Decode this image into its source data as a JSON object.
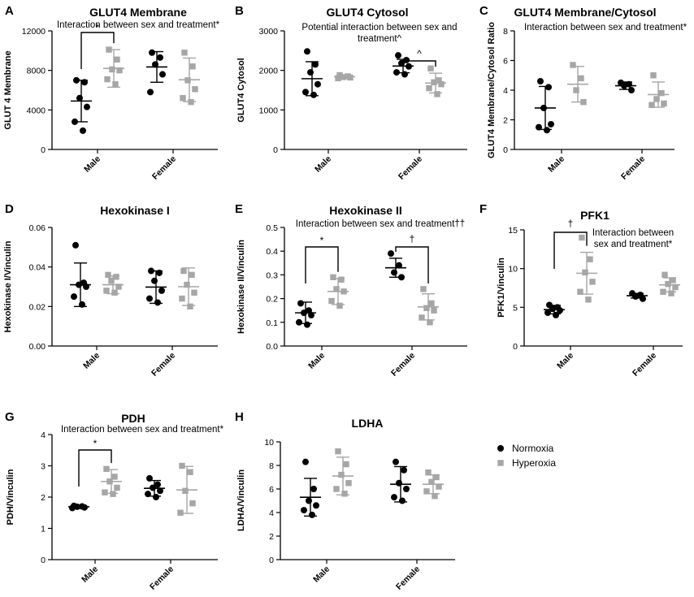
{
  "colors": {
    "normoxia": "#000000",
    "hyperoxia": "#a6a6a6",
    "axis": "#000000"
  },
  "legend": [
    {
      "name": "Normoxia",
      "color": "#000000",
      "marker": "circle"
    },
    {
      "name": "Hyperoxia",
      "color": "#a6a6a6",
      "marker": "square"
    }
  ],
  "chart_data": [
    {
      "panel": "A",
      "type": "scatter",
      "title": "GLUT4 Membrane",
      "note": "Interaction between sex and treatment*",
      "ylabel": "GLUT 4 Membrane",
      "ylim": [
        0,
        12000
      ],
      "yticks": [
        0,
        4000,
        8000,
        12000
      ],
      "categories": [
        "Male",
        "Female"
      ],
      "series": [
        {
          "group": "Male",
          "name": "Normoxia",
          "values": [
            7000,
            6800,
            5200,
            4300,
            2800,
            1900
          ],
          "mean": 4900,
          "sd": 2100
        },
        {
          "group": "Male",
          "name": "Hyperoxia",
          "values": [
            10100,
            9100,
            8100,
            8000,
            7100,
            6600
          ],
          "mean": 8200,
          "sd": 1900
        },
        {
          "group": "Female",
          "name": "Normoxia",
          "values": [
            9800,
            9300,
            8600,
            7600,
            5800
          ],
          "mean": 8350,
          "sd": 1550
        },
        {
          "group": "Female",
          "name": "Hyperoxia",
          "values": [
            9800,
            8400,
            7000,
            6100,
            5200,
            4800
          ],
          "mean": 7050,
          "sd": 2200
        }
      ],
      "significance": [
        {
          "group": "Male",
          "symbol": "*"
        }
      ]
    },
    {
      "panel": "B",
      "type": "scatter",
      "title": "GLUT4 Cytosol",
      "note": "Potential interaction between sex and",
      "note2": "treatment^",
      "ylabel": "GLUT4 Cytosol",
      "ylim": [
        0,
        3000
      ],
      "yticks": [
        0,
        1000,
        2000,
        3000
      ],
      "categories": [
        "Male",
        "Female"
      ],
      "series": [
        {
          "group": "Male",
          "name": "Normoxia",
          "values": [
            2480,
            2150,
            1950,
            1650,
            1450,
            1380
          ],
          "mean": 1790,
          "sd": 430
        },
        {
          "group": "Male",
          "name": "Hyperoxia",
          "values": [
            1880,
            1850,
            1830,
            1820,
            1800
          ],
          "mean": 1840,
          "sd": 45
        },
        {
          "group": "Female",
          "name": "Normoxia",
          "values": [
            2380,
            2260,
            2180,
            2100,
            1950,
            1900
          ],
          "mean": 2110,
          "sd": 170
        },
        {
          "group": "Female",
          "name": "Hyperoxia",
          "values": [
            2050,
            1750,
            1700,
            1650,
            1550,
            1400
          ],
          "mean": 1680,
          "sd": 250
        }
      ],
      "significance": [
        {
          "group": "Female",
          "symbol": "^"
        }
      ]
    },
    {
      "panel": "C",
      "type": "scatter",
      "title": "GLUT4 Membrane/Cytosol",
      "note": "Interaction between sex and treatment*",
      "ylabel": "GLUT4 Membrane/Cytosol Ratio",
      "ylim": [
        0,
        8
      ],
      "yticks": [
        0,
        2,
        4,
        6,
        8
      ],
      "categories": [
        "Male",
        "Female"
      ],
      "series": [
        {
          "group": "Male",
          "name": "Normoxia",
          "values": [
            4.6,
            4.2,
            2.8,
            1.7,
            1.5,
            1.3
          ],
          "mean": 2.8,
          "sd": 1.45
        },
        {
          "group": "Male",
          "name": "Hyperoxia",
          "values": [
            5.7,
            4.8,
            4.0,
            3.2
          ],
          "mean": 4.4,
          "sd": 1.2
        },
        {
          "group": "Female",
          "name": "Normoxia",
          "values": [
            4.5,
            4.4,
            4.3,
            4.0
          ],
          "mean": 4.3,
          "sd": 0.25
        },
        {
          "group": "Female",
          "name": "Hyperoxia",
          "values": [
            5.0,
            3.8,
            3.4,
            3.1,
            3.0
          ],
          "mean": 3.7,
          "sd": 0.85
        }
      ],
      "significance": []
    },
    {
      "panel": "D",
      "type": "scatter",
      "title": "Hexokinase I",
      "note": "",
      "ylabel": "Hexokinase I/Vinculin",
      "ylim": [
        0,
        0.06
      ],
      "yticks": [
        0.0,
        0.02,
        0.04,
        0.06
      ],
      "tickDecimals": 2,
      "categories": [
        "Male",
        "Female"
      ],
      "series": [
        {
          "group": "Male",
          "name": "Normoxia",
          "values": [
            0.051,
            0.032,
            0.031,
            0.03,
            0.025,
            0.021
          ],
          "mean": 0.031,
          "sd": 0.011
        },
        {
          "group": "Male",
          "name": "Hyperoxia",
          "values": [
            0.036,
            0.035,
            0.033,
            0.03,
            0.028,
            0.027
          ],
          "mean": 0.031,
          "sd": 0.0045
        },
        {
          "group": "Female",
          "name": "Normoxia",
          "values": [
            0.038,
            0.037,
            0.033,
            0.028,
            0.024,
            0.022
          ],
          "mean": 0.0298,
          "sd": 0.0082
        },
        {
          "group": "Female",
          "name": "Hyperoxia",
          "values": [
            0.038,
            0.036,
            0.031,
            0.027,
            0.024,
            0.02
          ],
          "mean": 0.03,
          "sd": 0.0095
        }
      ],
      "significance": []
    },
    {
      "panel": "E",
      "type": "scatter",
      "title": "Hexokinase II",
      "note": "Interaction between sex and treatment††",
      "ylabel": "Hexokinase II/Vinculin",
      "ylim": [
        0,
        0.5
      ],
      "yticks": [
        0.0,
        0.1,
        0.2,
        0.3,
        0.4,
        0.5
      ],
      "tickDecimals": 1,
      "categories": [
        "Male",
        "Female"
      ],
      "series": [
        {
          "group": "Male",
          "name": "Normoxia",
          "values": [
            0.18,
            0.15,
            0.14,
            0.13,
            0.1,
            0.09
          ],
          "mean": 0.14,
          "sd": 0.045
        },
        {
          "group": "Male",
          "name": "Hyperoxia",
          "values": [
            0.29,
            0.28,
            0.24,
            0.23,
            0.19,
            0.17
          ],
          "mean": 0.23,
          "sd": 0.055
        },
        {
          "group": "Female",
          "name": "Normoxia",
          "values": [
            0.39,
            0.34,
            0.31,
            0.29
          ],
          "mean": 0.33,
          "sd": 0.04
        },
        {
          "group": "Female",
          "name": "Hyperoxia",
          "values": [
            0.24,
            0.18,
            0.16,
            0.15,
            0.12,
            0.1
          ],
          "mean": 0.165,
          "sd": 0.055
        }
      ],
      "significance": [
        {
          "group": "Male",
          "symbol": "*"
        },
        {
          "group": "Female",
          "symbol": "†"
        }
      ]
    },
    {
      "panel": "F",
      "type": "scatter",
      "title": "PFK1",
      "note": "Interaction between",
      "note2": "sex and treatment*",
      "ylabel": "PFK1/Vinculin",
      "ylim": [
        0,
        15
      ],
      "yticks": [
        0,
        5,
        10,
        15
      ],
      "categories": [
        "Male",
        "Female"
      ],
      "series": [
        {
          "group": "Male",
          "name": "Normoxia",
          "values": [
            5.3,
            5.0,
            4.8,
            4.6,
            4.3,
            4.0
          ],
          "mean": 4.7,
          "sd": 0.55
        },
        {
          "group": "Male",
          "name": "Hyperoxia",
          "values": [
            14.0,
            11.2,
            9.5,
            8.3,
            7.0,
            6.0
          ],
          "mean": 9.4,
          "sd": 2.7
        },
        {
          "group": "Female",
          "name": "Normoxia",
          "values": [
            6.8,
            6.6,
            6.4,
            6.1
          ],
          "mean": 6.5,
          "sd": 0.3
        },
        {
          "group": "Female",
          "name": "Hyperoxia",
          "values": [
            9.2,
            8.5,
            8.0,
            7.6,
            7.0,
            6.8
          ],
          "mean": 7.9,
          "sd": 0.9
        }
      ],
      "significance": [
        {
          "group": "Male",
          "symbol": "†"
        }
      ]
    },
    {
      "panel": "G",
      "type": "scatter",
      "title": "PDH",
      "note": "Interaction between sex and treatment*",
      "ylabel": "PDH/Vinculin",
      "ylim": [
        0,
        4
      ],
      "yticks": [
        0,
        1,
        2,
        3,
        4
      ],
      "categories": [
        "Male",
        "Female"
      ],
      "series": [
        {
          "group": "Male",
          "name": "Normoxia",
          "values": [
            1.72,
            1.7,
            1.69,
            1.67,
            1.65
          ],
          "mean": 1.69,
          "sd": 0.04
        },
        {
          "group": "Male",
          "name": "Hyperoxia",
          "values": [
            2.9,
            2.65,
            2.5,
            2.3,
            2.15,
            2.1
          ],
          "mean": 2.5,
          "sd": 0.38
        },
        {
          "group": "Female",
          "name": "Normoxia",
          "values": [
            2.6,
            2.4,
            2.3,
            2.2,
            2.1,
            2.0
          ],
          "mean": 2.28,
          "sd": 0.25
        },
        {
          "group": "Female",
          "name": "Hyperoxia",
          "values": [
            3.0,
            2.8,
            2.2,
            1.8,
            1.5
          ],
          "mean": 2.23,
          "sd": 0.75
        }
      ],
      "significance": [
        {
          "group": "Male",
          "symbol": "*"
        }
      ]
    },
    {
      "panel": "H",
      "type": "scatter",
      "title": "LDHA",
      "note": "",
      "ylabel": "LDHA/Vinculin",
      "ylim": [
        0,
        10
      ],
      "yticks": [
        0,
        2,
        4,
        6,
        8,
        10
      ],
      "categories": [
        "Male",
        "Female"
      ],
      "series": [
        {
          "group": "Male",
          "name": "Normoxia",
          "values": [
            8.3,
            6.0,
            5.0,
            4.6,
            4.2,
            3.8
          ],
          "mean": 5.3,
          "sd": 1.6
        },
        {
          "group": "Male",
          "name": "Hyperoxia",
          "values": [
            9.2,
            8.1,
            7.2,
            6.5,
            6.0,
            5.6
          ],
          "mean": 7.1,
          "sd": 1.6
        },
        {
          "group": "Female",
          "name": "Normoxia",
          "values": [
            8.3,
            7.6,
            6.5,
            6.0,
            5.3,
            5.0
          ],
          "mean": 6.4,
          "sd": 1.5
        },
        {
          "group": "Female",
          "name": "Hyperoxia",
          "values": [
            7.4,
            7.0,
            6.6,
            6.2,
            5.8,
            5.4
          ],
          "mean": 6.4,
          "sd": 0.8
        }
      ],
      "significance": []
    }
  ]
}
